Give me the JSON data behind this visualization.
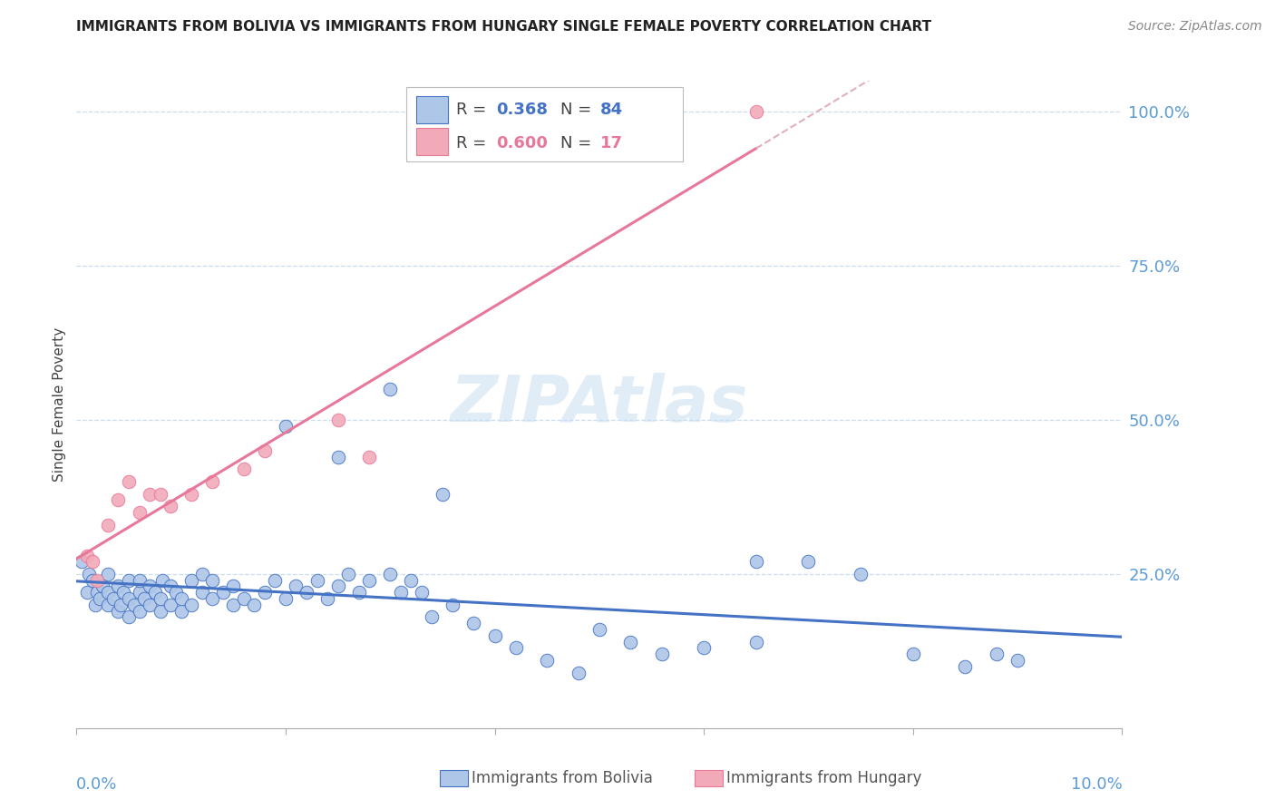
{
  "title": "IMMIGRANTS FROM BOLIVIA VS IMMIGRANTS FROM HUNGARY SINGLE FEMALE POVERTY CORRELATION CHART",
  "source": "Source: ZipAtlas.com",
  "ylabel": "Single Female Poverty",
  "bolivia_color": "#aec6e8",
  "hungary_color": "#f2aab8",
  "bolivia_line_color": "#4472c4",
  "hungary_line_color": "#e8789a",
  "hungary_dash_color": "#e0b0c0",
  "axis_color": "#5b9bd5",
  "bolivia_R": 0.368,
  "bolivia_N": 84,
  "hungary_R": 0.6,
  "hungary_N": 17,
  "xlim": [
    0.0,
    0.1
  ],
  "ylim": [
    0.0,
    1.05
  ],
  "bolivia_scatter_x": [
    0.0005,
    0.001,
    0.0012,
    0.0015,
    0.0018,
    0.002,
    0.0022,
    0.0025,
    0.003,
    0.003,
    0.003,
    0.0035,
    0.004,
    0.004,
    0.0042,
    0.0045,
    0.005,
    0.005,
    0.005,
    0.0055,
    0.006,
    0.006,
    0.006,
    0.0065,
    0.007,
    0.007,
    0.0075,
    0.008,
    0.008,
    0.0082,
    0.009,
    0.009,
    0.0095,
    0.01,
    0.01,
    0.011,
    0.011,
    0.012,
    0.012,
    0.013,
    0.013,
    0.014,
    0.015,
    0.015,
    0.016,
    0.017,
    0.018,
    0.019,
    0.02,
    0.021,
    0.022,
    0.023,
    0.024,
    0.025,
    0.026,
    0.027,
    0.028,
    0.03,
    0.031,
    0.032,
    0.033,
    0.034,
    0.036,
    0.038,
    0.04,
    0.042,
    0.045,
    0.048,
    0.05,
    0.053,
    0.056,
    0.06,
    0.065,
    0.065,
    0.07,
    0.075,
    0.08,
    0.085,
    0.088,
    0.09,
    0.02,
    0.025,
    0.03,
    0.035
  ],
  "bolivia_scatter_y": [
    0.27,
    0.22,
    0.25,
    0.24,
    0.2,
    0.22,
    0.21,
    0.23,
    0.2,
    0.22,
    0.25,
    0.21,
    0.19,
    0.23,
    0.2,
    0.22,
    0.18,
    0.21,
    0.24,
    0.2,
    0.22,
    0.19,
    0.24,
    0.21,
    0.2,
    0.23,
    0.22,
    0.19,
    0.21,
    0.24,
    0.2,
    0.23,
    0.22,
    0.19,
    0.21,
    0.2,
    0.24,
    0.22,
    0.25,
    0.21,
    0.24,
    0.22,
    0.2,
    0.23,
    0.21,
    0.2,
    0.22,
    0.24,
    0.21,
    0.23,
    0.22,
    0.24,
    0.21,
    0.23,
    0.25,
    0.22,
    0.24,
    0.25,
    0.22,
    0.24,
    0.22,
    0.18,
    0.2,
    0.17,
    0.15,
    0.13,
    0.11,
    0.09,
    0.16,
    0.14,
    0.12,
    0.13,
    0.27,
    0.14,
    0.27,
    0.25,
    0.12,
    0.1,
    0.12,
    0.11,
    0.49,
    0.44,
    0.55,
    0.38
  ],
  "hungary_scatter_x": [
    0.001,
    0.0015,
    0.002,
    0.003,
    0.004,
    0.005,
    0.006,
    0.007,
    0.008,
    0.009,
    0.011,
    0.013,
    0.016,
    0.018,
    0.025,
    0.028,
    0.065
  ],
  "hungary_scatter_y": [
    0.28,
    0.27,
    0.24,
    0.33,
    0.37,
    0.4,
    0.35,
    0.38,
    0.38,
    0.36,
    0.38,
    0.4,
    0.42,
    0.45,
    0.5,
    0.44,
    1.0
  ],
  "watermark": "ZIPAtlas",
  "yticks": [
    0.25,
    0.5,
    0.75,
    1.0
  ],
  "ytick_labels": [
    "25.0%",
    "50.0%",
    "75.0%",
    "100.0%"
  ]
}
